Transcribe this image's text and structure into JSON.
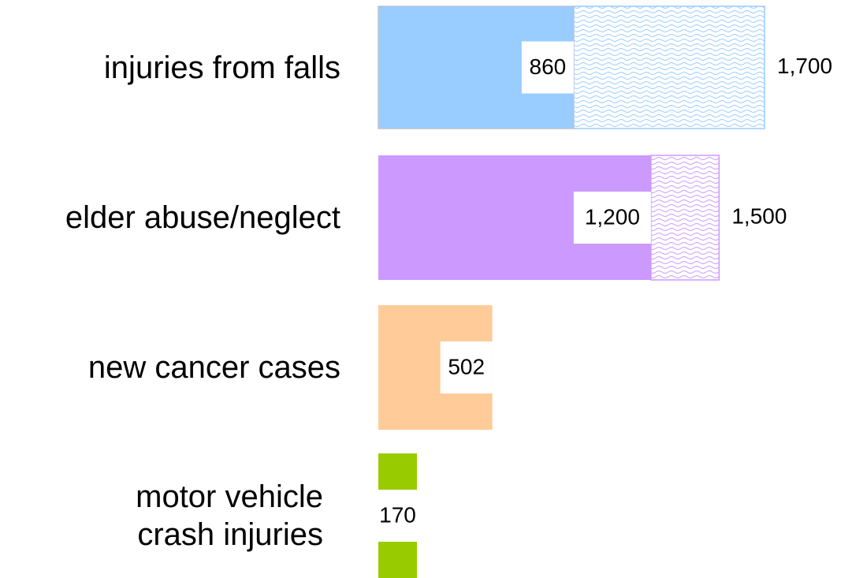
{
  "chart_data": {
    "type": "bar",
    "categories": [
      "injuries from falls",
      "elder abuse/neglect",
      "new cancer cases",
      "motor vehicle crash injuries"
    ],
    "values": [
      860,
      1200,
      502,
      170
    ],
    "value_labels": [
      "860",
      "1,200",
      "502",
      "170"
    ],
    "upper": [
      1700,
      1500,
      null,
      null
    ],
    "upper_labels": [
      "1,700",
      "1,500",
      null,
      null
    ],
    "colors": [
      "#99ccff",
      "#cc99ff",
      "#ffcc99",
      "#99cc00"
    ],
    "xlim": [
      0,
      1700
    ]
  }
}
